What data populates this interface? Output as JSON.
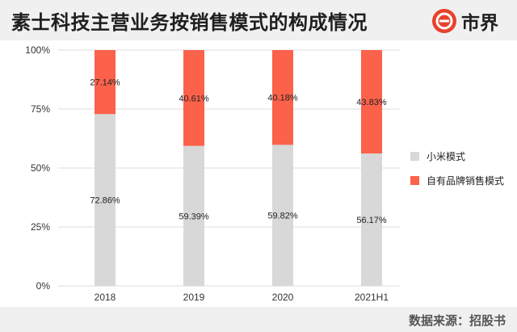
{
  "header": {
    "title": "素士科技主营业务按销售模式的构成情况",
    "logo_text": "市界"
  },
  "footer": {
    "source": "数据来源：招股书"
  },
  "colors": {
    "xiaomi": "#d8d8d8",
    "own_brand": "#fc614a",
    "grid": "#dddddd",
    "brand_red": "#e8412c"
  },
  "icons": {
    "logo": "shijie-logo-icon"
  },
  "chart_data": {
    "type": "bar",
    "stacked": true,
    "title": "素士科技主营业务按销售模式的构成情况",
    "categories": [
      "2018",
      "2019",
      "2020",
      "2021H1"
    ],
    "series": [
      {
        "name": "小米模式",
        "values": [
          72.86,
          59.39,
          59.82,
          56.17
        ],
        "labels": [
          "72.86%",
          "59.39%",
          "59.82%",
          "56.17%"
        ]
      },
      {
        "name": "自有品牌销售模式",
        "values": [
          27.14,
          40.61,
          40.18,
          43.83
        ],
        "labels": [
          "27.14%",
          "40.61%",
          "40.18%",
          "43.83%"
        ]
      }
    ],
    "yticks": [
      "0%",
      "25%",
      "50%",
      "75%",
      "100%"
    ],
    "ylim": [
      0,
      100
    ],
    "xlabel": "",
    "ylabel": "",
    "grid": true,
    "legend": "right"
  }
}
